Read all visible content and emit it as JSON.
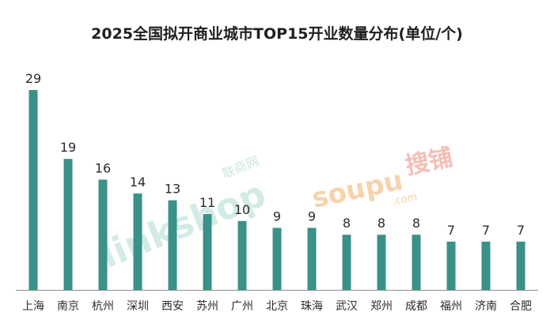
{
  "title": "2025全国拟开商业城市TOP15开业数量分布(单位/个)",
  "watermarks": {
    "linkshop_brand": "linkshop",
    "linkshop_cn": "联商网",
    "soupu_brand": "soupu",
    "soupu_cn": "搜铺",
    "soupu_domain": ".com"
  },
  "colors": {
    "bar": "#3a9188",
    "axis": "#8c8c8c"
  },
  "chart_data": {
    "type": "bar",
    "title": "2025全国拟开商业城市TOP15开业数量分布(单位/个)",
    "categories": [
      "上海",
      "南京",
      "杭州",
      "深圳",
      "西安",
      "苏州",
      "广州",
      "北京",
      "珠海",
      "武汉",
      "郑州",
      "成都",
      "福州",
      "济南",
      "合肥"
    ],
    "values": [
      29,
      19,
      16,
      14,
      13,
      11,
      10,
      9,
      9,
      8,
      8,
      8,
      7,
      7,
      7
    ],
    "xlabel": "",
    "ylabel": "",
    "ylim": [
      0,
      29
    ],
    "grid": false,
    "data_labels": true
  }
}
